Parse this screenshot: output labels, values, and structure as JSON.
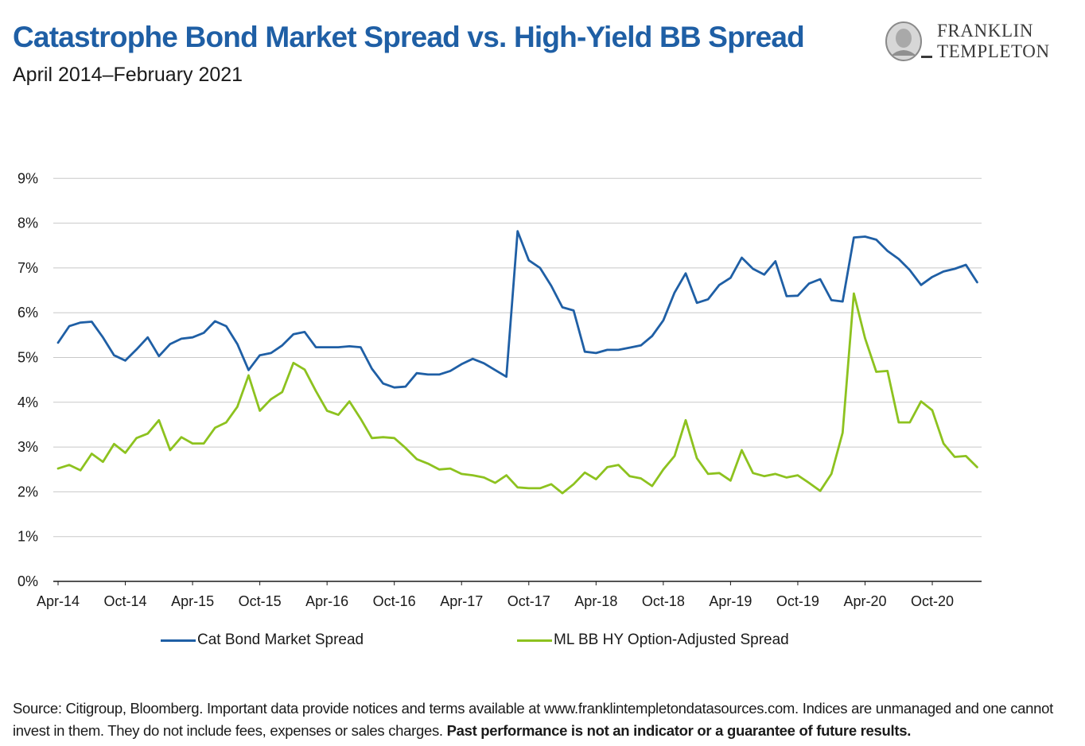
{
  "header": {
    "title": "Catastrophe Bond Market Spread vs. High-Yield BB Spread",
    "subtitle": "April 2014–February 2021",
    "logo_line1": "FRANKLIN",
    "logo_line2": "TEMPLETON"
  },
  "colors": {
    "title": "#1f5fa5",
    "series_blue": "#1f5fa5",
    "series_green": "#8dc21f",
    "gridline": "#c8c8c8"
  },
  "chart_data": {
    "type": "line",
    "title": "Catastrophe Bond Market Spread vs. High-Yield BB Spread",
    "subtitle": "April 2014–February 2021",
    "xlabel": "",
    "ylabel": "",
    "x_start": "2014-04",
    "x_end": "2021-02",
    "x_ticks": [
      "Apr-14",
      "Oct-14",
      "Apr-15",
      "Oct-15",
      "Apr-16",
      "Oct-16",
      "Apr-17",
      "Oct-17",
      "Apr-18",
      "Oct-18",
      "Apr-19",
      "Oct-19",
      "Apr-20",
      "Oct-20"
    ],
    "y_ticks": [
      "0%",
      "1%",
      "2%",
      "3%",
      "4%",
      "5%",
      "6%",
      "7%",
      "8%",
      "9%"
    ],
    "ylim": [
      0,
      9
    ],
    "grid": true,
    "legend_position": "bottom",
    "series": [
      {
        "name": "Cat Bond Market Spread",
        "color": "#1f5fa5",
        "values": [
          5.33,
          5.7,
          5.78,
          5.8,
          5.45,
          5.05,
          4.93,
          5.18,
          5.45,
          5.03,
          5.3,
          5.42,
          5.45,
          5.55,
          5.81,
          5.7,
          5.3,
          4.72,
          5.05,
          5.1,
          5.27,
          5.52,
          5.57,
          5.23,
          5.23,
          5.23,
          5.25,
          5.23,
          4.75,
          4.42,
          4.33,
          4.35,
          4.65,
          4.62,
          4.62,
          4.7,
          4.85,
          4.97,
          4.87,
          4.72,
          4.57,
          7.82,
          7.17,
          7.0,
          6.6,
          6.12,
          6.05,
          5.13,
          5.1,
          5.17,
          5.17,
          5.22,
          5.27,
          5.48,
          5.83,
          6.45,
          6.88,
          6.22,
          6.3,
          6.62,
          6.78,
          7.23,
          6.98,
          6.85,
          7.15,
          6.37,
          6.38,
          6.65,
          6.75,
          6.28,
          6.25,
          7.68,
          7.7,
          7.63,
          7.38,
          7.2,
          6.95,
          6.62,
          6.8,
          6.92,
          6.98,
          7.07,
          6.68
        ]
      },
      {
        "name": "ML BB HY Option-Adjusted Spread",
        "color": "#8dc21f",
        "values": [
          2.52,
          2.6,
          2.48,
          2.85,
          2.67,
          3.07,
          2.87,
          3.2,
          3.3,
          3.6,
          2.93,
          3.22,
          3.08,
          3.08,
          3.43,
          3.55,
          3.9,
          4.6,
          3.81,
          4.07,
          4.23,
          4.88,
          4.73,
          4.25,
          3.81,
          3.72,
          4.02,
          3.63,
          3.2,
          3.22,
          3.2,
          2.98,
          2.73,
          2.63,
          2.5,
          2.52,
          2.4,
          2.37,
          2.32,
          2.2,
          2.37,
          2.1,
          2.08,
          2.08,
          2.17,
          1.97,
          2.17,
          2.43,
          2.28,
          2.55,
          2.6,
          2.35,
          2.3,
          2.13,
          2.5,
          2.8,
          3.6,
          2.75,
          2.4,
          2.42,
          2.25,
          2.93,
          2.42,
          2.35,
          2.4,
          2.32,
          2.37,
          2.2,
          2.02,
          2.4,
          3.32,
          6.43,
          5.43,
          4.68,
          4.7,
          3.55,
          3.55,
          4.02,
          3.82,
          3.08,
          2.78,
          2.8,
          2.55
        ]
      }
    ]
  },
  "footer": {
    "source_text": "Source: Citigroup, Bloomberg. Important data provide notices and terms available at www.franklintempletondatasources.com. Indices are unmanaged and one cannot invest in them. They do not include fees, expenses or sales charges.",
    "source_bold": "Past performance is not an indicator or a guarantee of future results."
  }
}
